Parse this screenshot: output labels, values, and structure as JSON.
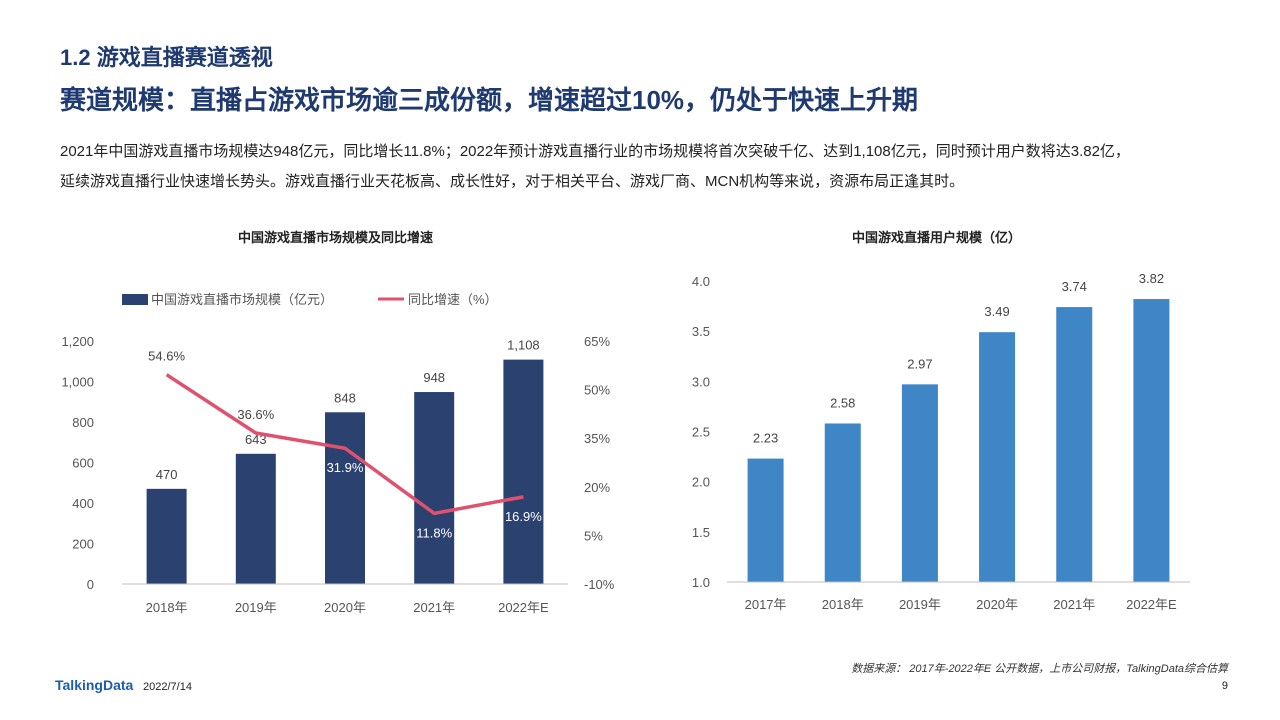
{
  "page": {
    "section_title": "1.2 游戏直播赛道透视",
    "headline": "赛道规模：直播占游戏市场逾三成份额，增速超过10%，仍处于快速上升期",
    "summary_line1": "2021年中国游戏直播市场规模达948亿元，同比增长11.8%；2022年预计游戏直播行业的市场规模将首次突破千亿、达到1,108亿元，同时预计用户数将达3.82亿，",
    "summary_line2": "延续游戏直播行业快速增长势头。游戏直播行业天花板高、成长性好，对于相关平台、游戏厂商、MCN机构等来说，资源布局正逢其时。",
    "source": "数据来源： 2017年-2022年E 公开数据，上市公司财报，TalkingData综合估算",
    "logo": "TalkingData",
    "date": "2022/7/14",
    "page_number": "9"
  },
  "chart_data": [
    {
      "type": "bar+line",
      "title": "中国游戏直播市场规模及同比增速",
      "categories": [
        "2018年",
        "2019年",
        "2020年",
        "2021年",
        "2022年E"
      ],
      "series": [
        {
          "name": "中国游戏直播市场规模（亿元）",
          "type": "bar",
          "axis": "left",
          "color": "#2b4170",
          "values": [
            470,
            643,
            848,
            948,
            1108
          ],
          "labels": [
            "470",
            "643",
            "848",
            "948",
            "1,108"
          ]
        },
        {
          "name": "同比增速（%）",
          "type": "line",
          "axis": "right",
          "color": "#e0516d",
          "values": [
            54.6,
            36.6,
            31.9,
            11.8,
            16.9
          ],
          "labels": [
            "54.6%",
            "36.6%",
            "31.9%",
            "11.8%",
            "16.9%"
          ]
        }
      ],
      "y_left": {
        "min": 0,
        "max": 1200,
        "ticks": [
          0,
          200,
          400,
          600,
          800,
          1000,
          1200
        ],
        "tick_labels": [
          "0",
          "200",
          "400",
          "600",
          "800",
          "1,000",
          "1,200"
        ]
      },
      "y_right": {
        "min": -10,
        "max": 65,
        "ticks": [
          -10,
          5,
          20,
          35,
          50,
          65
        ],
        "tick_labels": [
          "-10%",
          "5%",
          "20%",
          "35%",
          "50%",
          "65%"
        ]
      },
      "legend": "top-left",
      "grid": false
    },
    {
      "type": "bar",
      "title": "中国游戏直播用户规模（亿）",
      "categories": [
        "2017年",
        "2018年",
        "2019年",
        "2020年",
        "2021年",
        "2022年E"
      ],
      "values": [
        2.23,
        2.58,
        2.97,
        3.49,
        3.74,
        3.82
      ],
      "labels": [
        "2.23",
        "2.58",
        "2.97",
        "3.49",
        "3.74",
        "3.82"
      ],
      "color": "#3f86c7",
      "ylim": [
        1.0,
        4.0
      ],
      "ticks": [
        1.0,
        1.5,
        2.0,
        2.5,
        3.0,
        3.5,
        4.0
      ],
      "tick_labels": [
        "1.0",
        "1.5",
        "2.0",
        "2.5",
        "3.0",
        "3.5",
        "4.0"
      ],
      "grid": false
    }
  ]
}
